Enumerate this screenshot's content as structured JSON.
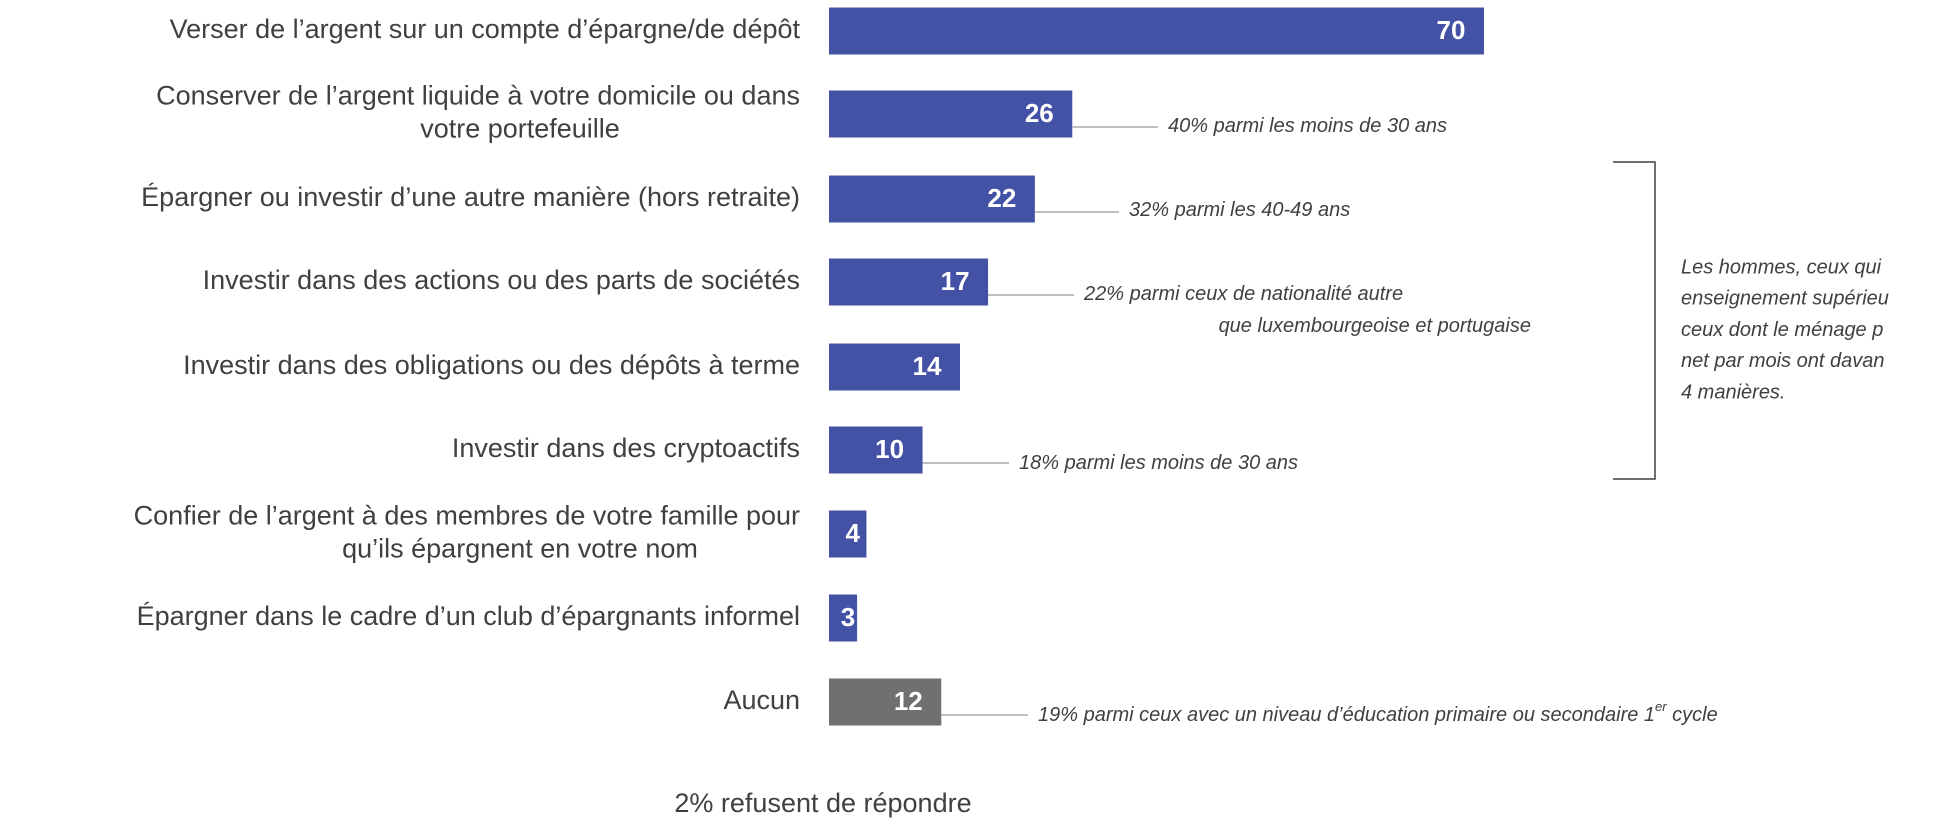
{
  "chart_data": {
    "type": "bar",
    "orientation": "horizontal",
    "categories": [
      [
        "Verser de l’argent sur un compte d’épargne/de dépôt"
      ],
      [
        "Conserver de l’argent liquide à votre domicile ou dans",
        "votre portefeuille"
      ],
      [
        "Épargner ou investir d’une autre manière (hors retraite)"
      ],
      [
        "Investir dans des actions ou des parts de sociétés"
      ],
      [
        "Investir dans des obligations ou des dépôts à terme"
      ],
      [
        "Investir dans des cryptoactifs"
      ],
      [
        "Confier de l’argent à des membres de votre famille pour",
        "qu’ils épargnent en votre nom"
      ],
      [
        "Épargner dans le cadre d’un club d’épargnants informel"
      ],
      [
        "Aucun"
      ]
    ],
    "values": [
      70,
      26,
      22,
      17,
      14,
      10,
      4,
      3,
      12
    ],
    "colors": [
      "#4352a5",
      "#4352a5",
      "#4352a5",
      "#4352a5",
      "#4352a5",
      "#4352a5",
      "#4352a5",
      "#4352a5",
      "#707070"
    ],
    "xlim": [
      0,
      70
    ],
    "annotations": [
      {
        "category": 1,
        "lines": [
          [
            "40% parmi les moins de 30 ans"
          ]
        ]
      },
      {
        "category": 2,
        "lines": [
          [
            "32% parmi les 40-49 ans"
          ]
        ]
      },
      {
        "category": 3,
        "lines": [
          [
            "22% parmi ceux de nationalité autre"
          ],
          [
            "que luxembourgeoise et portugaise"
          ]
        ]
      },
      {
        "category": 5,
        "lines": [
          [
            "18% parmi les moins de 30 ans"
          ]
        ]
      },
      {
        "category": 8,
        "lines": [
          [
            "19% parmi ceux avec un niveau d’éducation primaire ou secondaire 1",
            "er",
            " cycle"
          ]
        ]
      }
    ],
    "bracket_note": [
      "Les hommes, ceux qui",
      "enseignement supérieu",
      "ceux dont le ménage p",
      "net par mois ont davan",
      "4 manières."
    ],
    "footnote": "2% refusent de répondre"
  }
}
